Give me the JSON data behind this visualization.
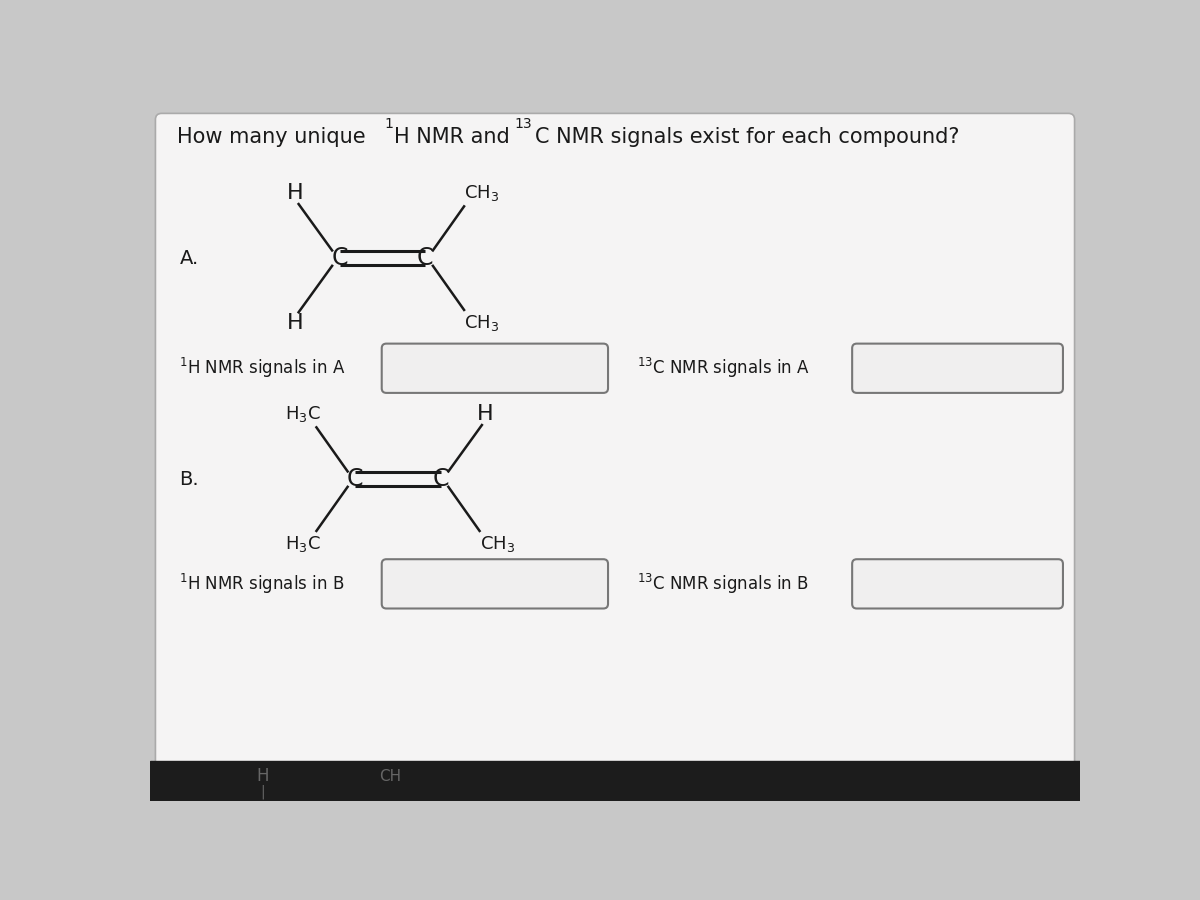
{
  "bg_color": "#c8c8c8",
  "panel_color": "#f0efef",
  "box_fill": "#f5f5f5",
  "box_edge": "#888888",
  "text_color": "#1a1a1a",
  "bond_color": "#1a1a1a",
  "title_text": "How many unique ",
  "title_sup1": "1",
  "title_h": "H NMR and ",
  "title_sup13": "13",
  "title_c": "C NMR signals exist for each compound?",
  "label_A": "A.",
  "label_B": "B.",
  "nmr1_A": "H NMR signals in A",
  "nmr13_A": "C NMR signals in A",
  "nmr1_B": "H NMR signals in B",
  "nmr13_B": "C NMR signals in B",
  "title_fontsize": 15,
  "label_fontsize": 14,
  "mol_fontsize": 16,
  "sub_fontsize": 13,
  "answer_fontsize": 12
}
